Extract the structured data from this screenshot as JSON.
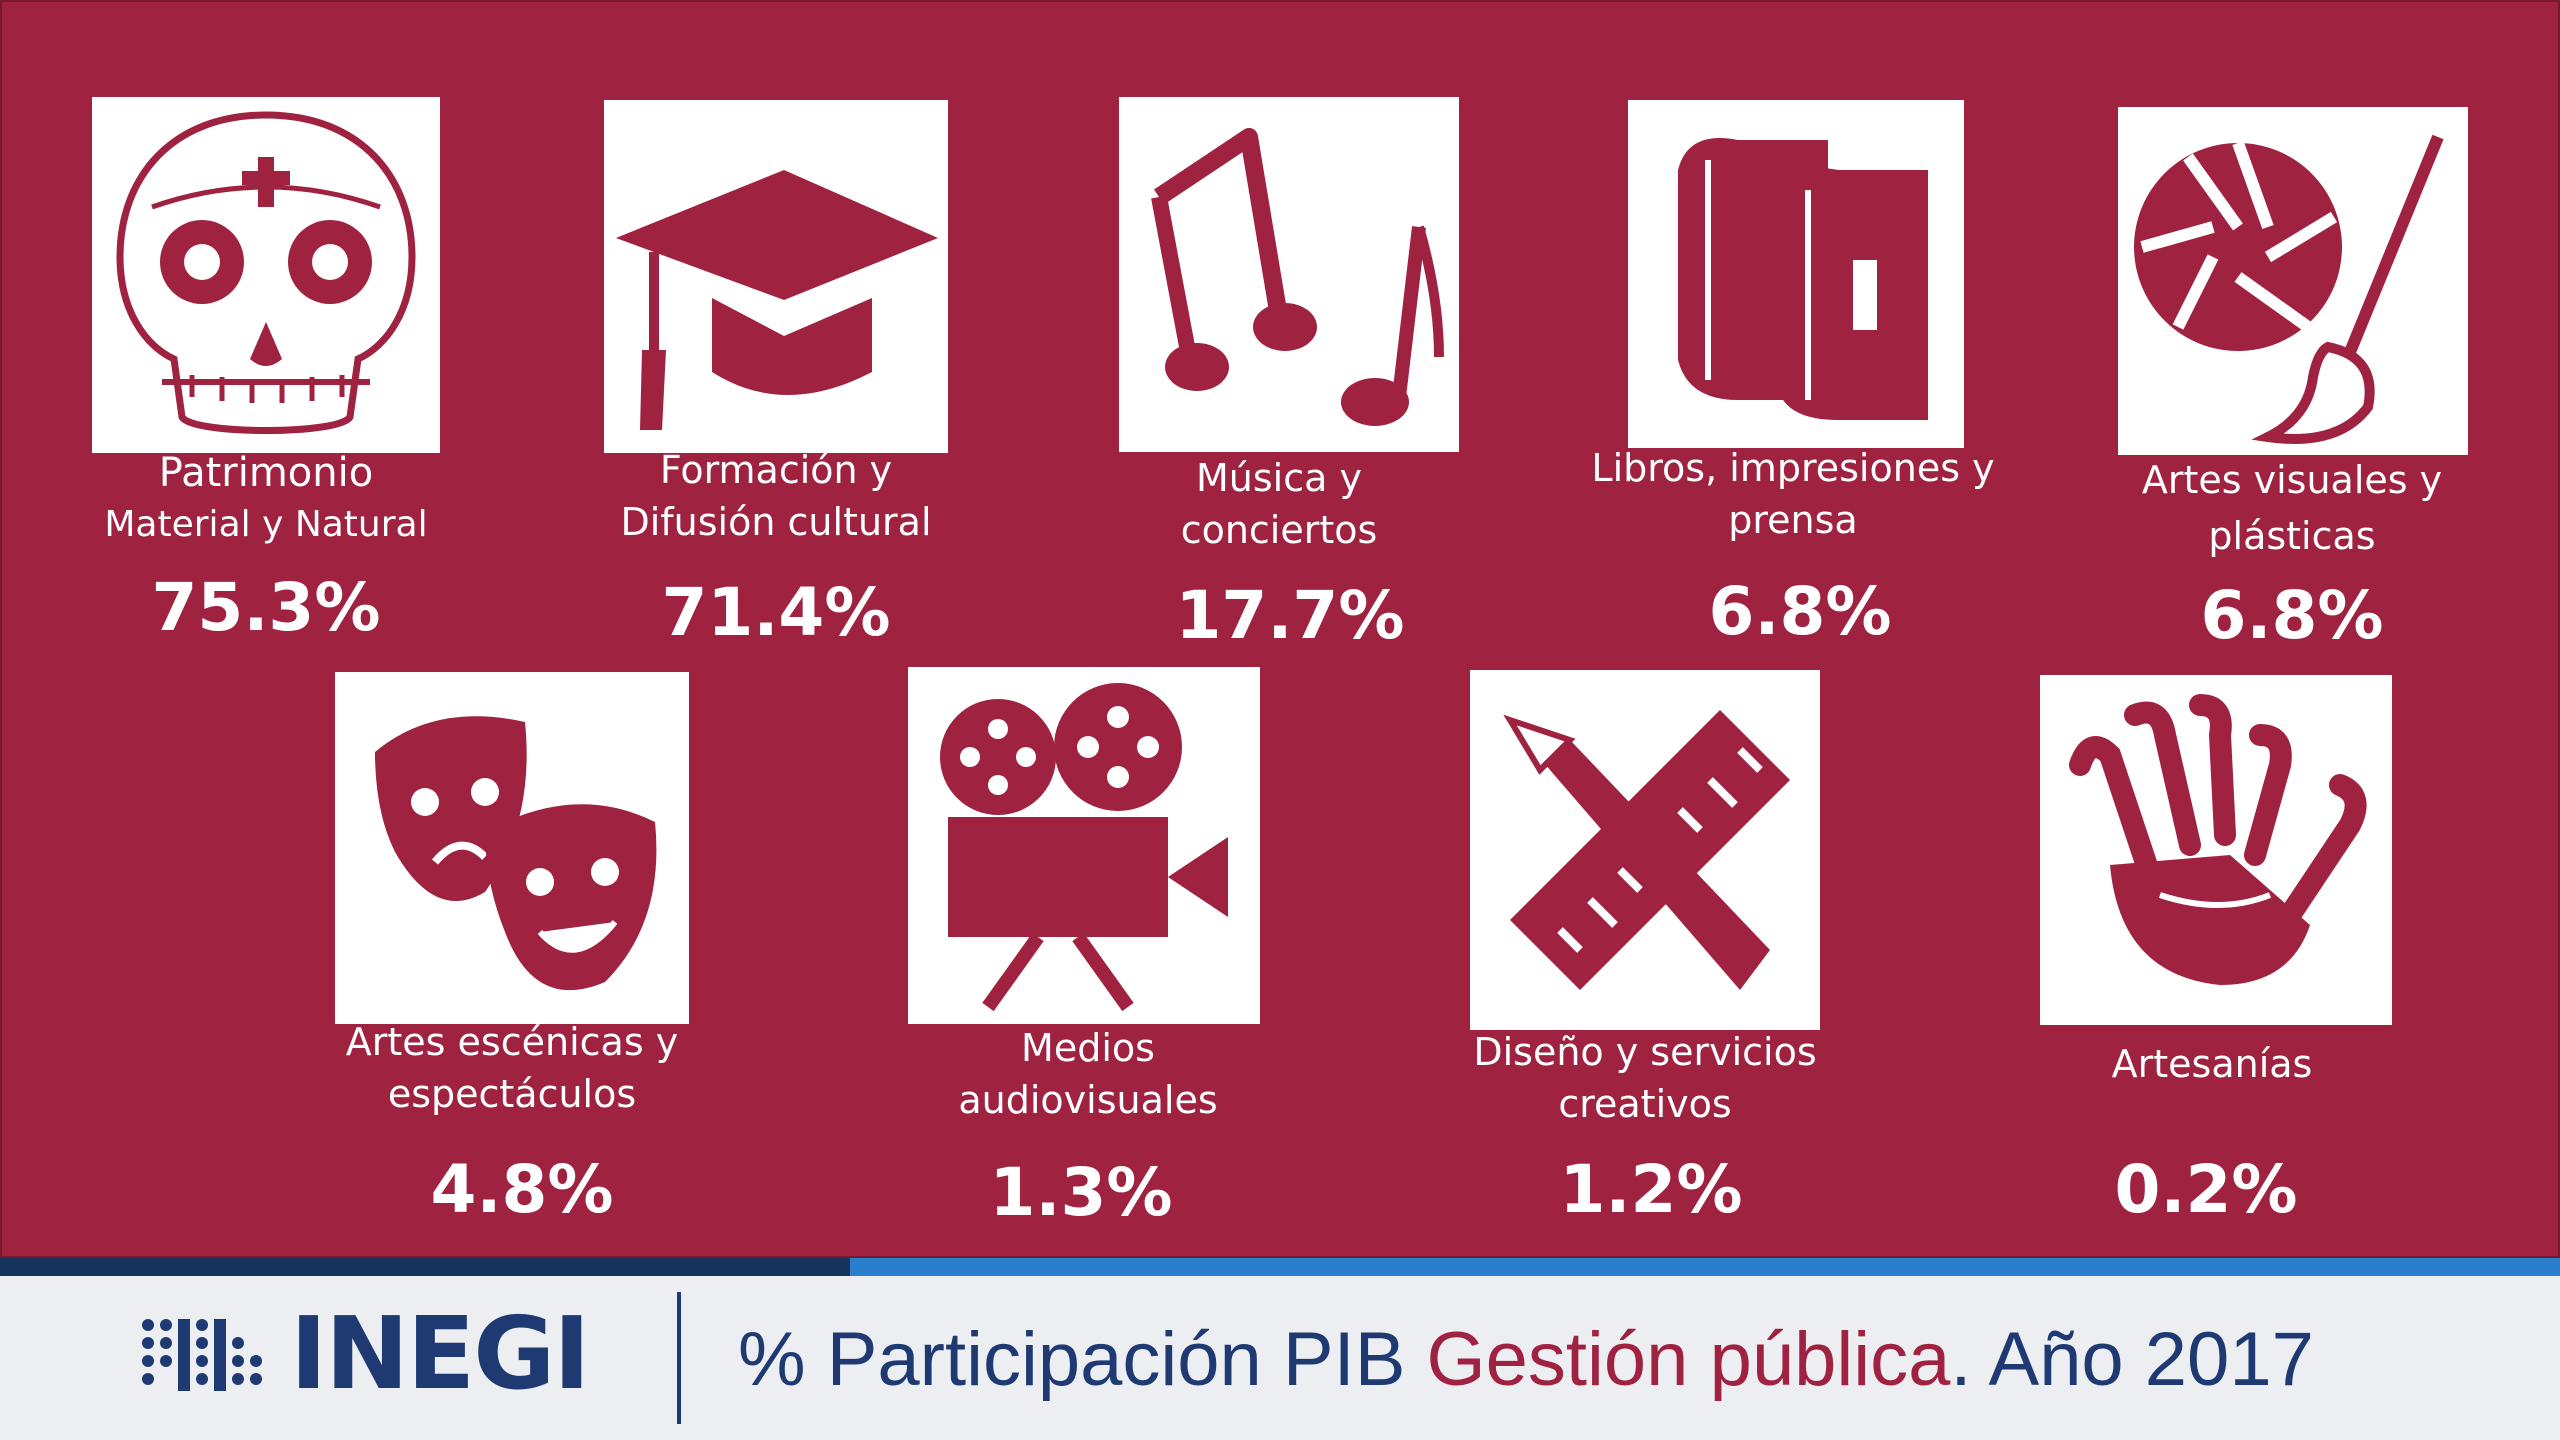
{
  "colors": {
    "panel": "#9f2241",
    "icon": "#9f2241",
    "text": "#ffffff",
    "footer_text": "#1f3a72",
    "highlight": "#9f2241",
    "bar_dark": "#16335c",
    "bar_blue": "#2a7fcd"
  },
  "items": [
    {
      "icon": "sugar-skull-icon",
      "label_lines": [
        "Patrimonio",
        "Material y Natural"
      ],
      "value": "75.3%"
    },
    {
      "icon": "graduation-cap-icon",
      "label_lines": [
        "Formación y",
        "Difusión cultural"
      ],
      "value": "71.4%"
    },
    {
      "icon": "music-notes-icon",
      "label_lines": [
        "Música y",
        "conciertos"
      ],
      "value": "17.7%"
    },
    {
      "icon": "books-icon",
      "label_lines": [
        "Libros, impresiones y",
        "prensa"
      ],
      "value": "6.8%"
    },
    {
      "icon": "aperture-brush-icon",
      "label_lines": [
        "Artes visuales y",
        "plásticas"
      ],
      "value": "6.8%"
    },
    {
      "icon": "theater-masks-icon",
      "label_lines": [
        "Artes escénicas y",
        "espectáculos"
      ],
      "value": "4.8%"
    },
    {
      "icon": "film-camera-icon",
      "label_lines": [
        "Medios",
        "audiovisuales"
      ],
      "value": "1.3%"
    },
    {
      "icon": "pencil-ruler-icon",
      "label_lines": [
        "Diseño y servicios",
        "creativos"
      ],
      "value": "1.2%"
    },
    {
      "icon": "hands-icon",
      "label_lines": [
        "Artesanías"
      ],
      "value": "0.2%"
    }
  ],
  "footer": {
    "logo_text": "INEGI",
    "title_part1": "% Participación PIB ",
    "title_highlight": "Gestión pública",
    "title_part2": ". Año 2017"
  }
}
